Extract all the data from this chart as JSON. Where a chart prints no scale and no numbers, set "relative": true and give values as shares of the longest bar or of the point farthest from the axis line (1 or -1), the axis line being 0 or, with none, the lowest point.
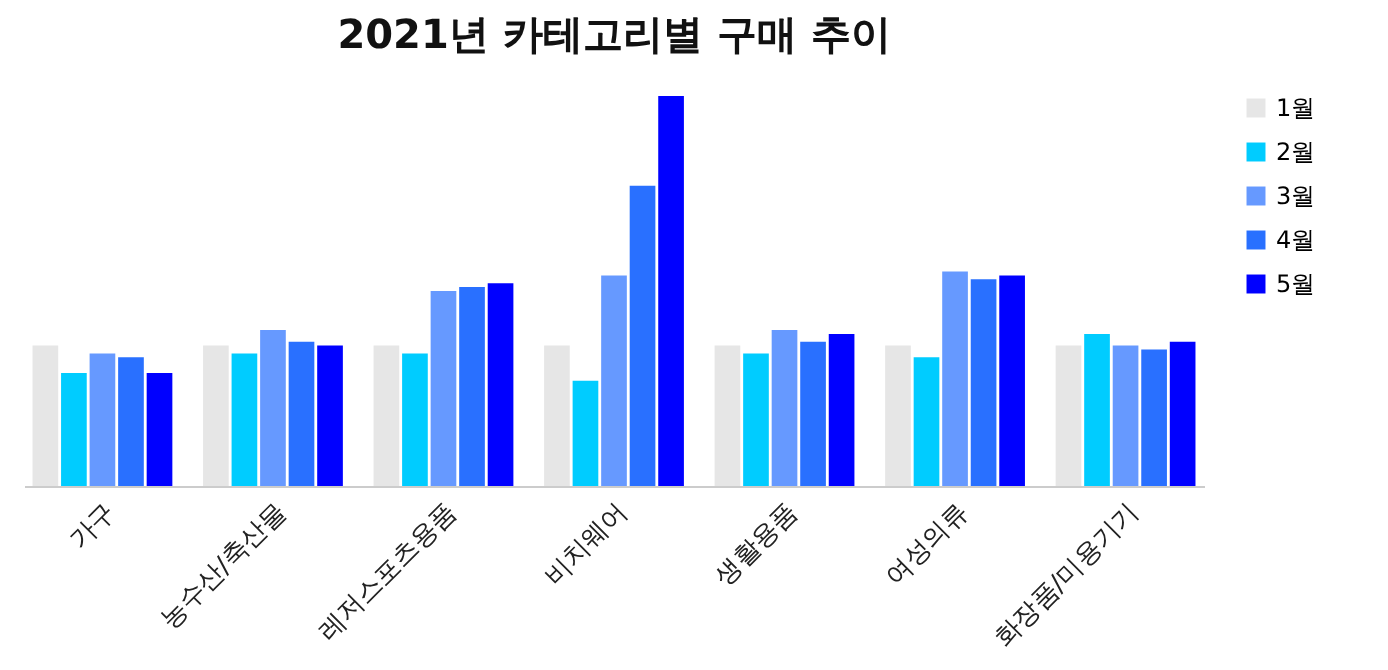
{
  "chart_data": {
    "type": "bar",
    "title": "2021년 카테고리별 구매 추이",
    "relative": true,
    "legend": "right",
    "grid": false,
    "categories": [
      "가구",
      "농수산/축산물",
      "레저스포츠용품",
      "비치웨어",
      "생활용품",
      "여성의류",
      "화장품/미용기기"
    ],
    "series": [
      {
        "name": "1월",
        "color": "#e6e6e6",
        "values": [
          0.36,
          0.36,
          0.36,
          0.36,
          0.36,
          0.36,
          0.36
        ]
      },
      {
        "name": "2월",
        "color": "#00ccff",
        "values": [
          0.29,
          0.34,
          0.34,
          0.27,
          0.34,
          0.33,
          0.39
        ]
      },
      {
        "name": "3월",
        "color": "#6699ff",
        "values": [
          0.34,
          0.4,
          0.5,
          0.54,
          0.4,
          0.55,
          0.36
        ]
      },
      {
        "name": "4월",
        "color": "#2970ff",
        "values": [
          0.33,
          0.37,
          0.51,
          0.77,
          0.37,
          0.53,
          0.35
        ]
      },
      {
        "name": "5월",
        "color": "#0000ff",
        "values": [
          0.29,
          0.36,
          0.52,
          1,
          0.39,
          0.54,
          0.37
        ]
      }
    ]
  }
}
